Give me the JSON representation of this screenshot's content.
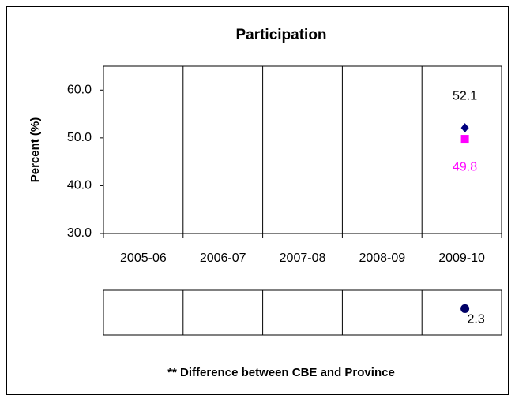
{
  "chart_data": [
    {
      "type": "scatter",
      "title": "Participation",
      "y_label": "Percent (%)",
      "categories": [
        "2005-06",
        "2006-07",
        "2007-08",
        "2008-09",
        "2009-10"
      ],
      "ylim": [
        30,
        65
      ],
      "yticks": [
        {
          "value": 30,
          "label": "30.0"
        },
        {
          "value": 40,
          "label": "40.0"
        },
        {
          "value": 50,
          "label": "50.0"
        },
        {
          "value": 60,
          "label": "60.0"
        }
      ],
      "series": [
        {
          "color": "#000080",
          "marker": "diamond",
          "label_position": "above",
          "values": [
            null,
            null,
            null,
            null,
            52.1
          ]
        },
        {
          "color": "#ff00ff",
          "marker": "square",
          "label_position": "below",
          "values": [
            null,
            null,
            null,
            null,
            49.8
          ]
        }
      ]
    },
    {
      "type": "scatter",
      "note": "** Difference between CBE and Province",
      "ylim": [
        -3,
        6
      ],
      "series": [
        {
          "color": "#000066",
          "marker": "circle",
          "label_position": "below-right",
          "values": [
            null,
            null,
            null,
            null,
            2.3
          ]
        }
      ]
    }
  ]
}
